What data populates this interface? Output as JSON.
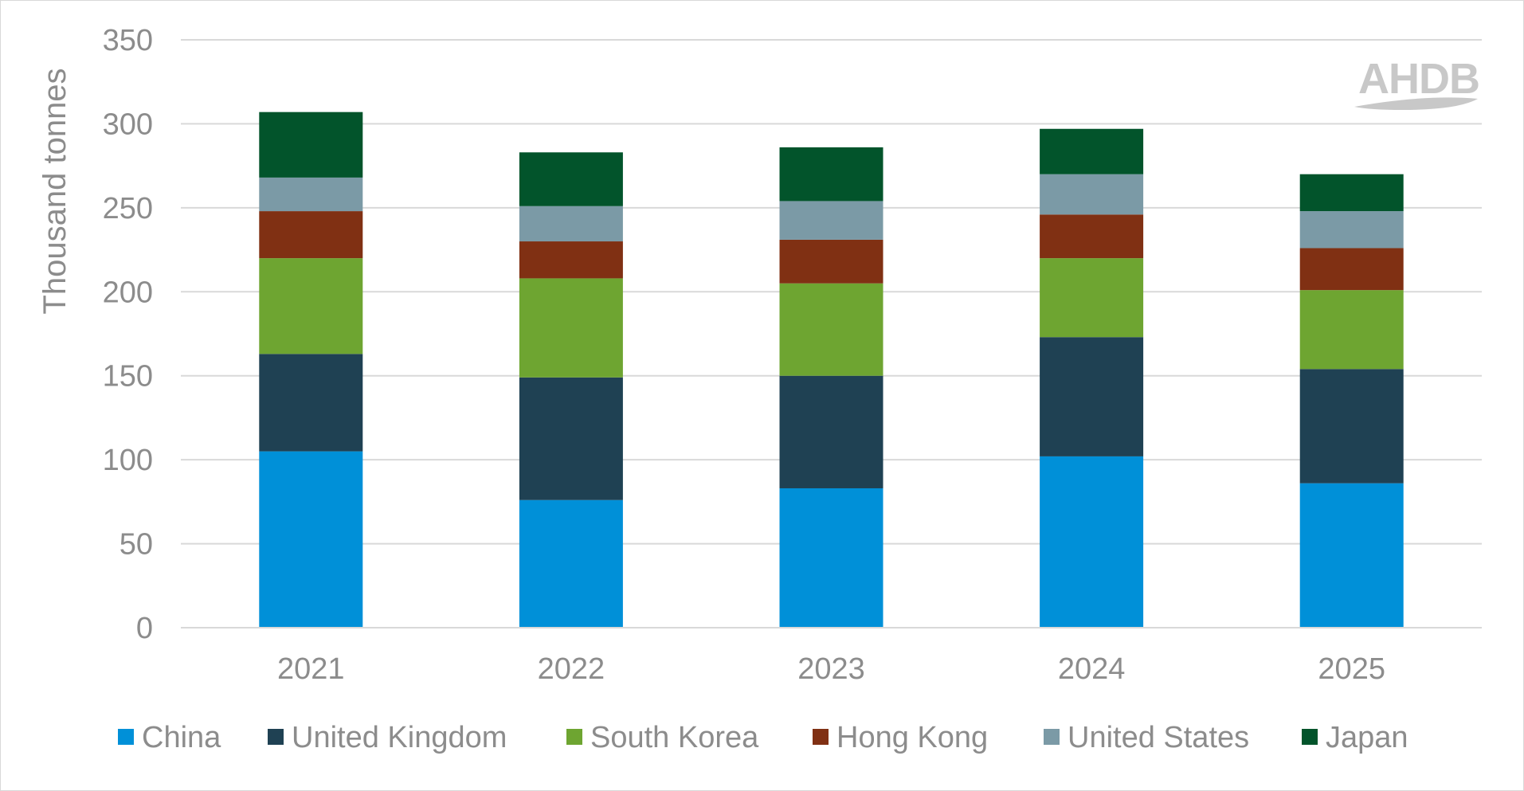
{
  "chart_data": {
    "type": "bar",
    "stacked": true,
    "title": "",
    "xlabel": "",
    "ylabel": "Thousand tonnes",
    "ylim": [
      0,
      350
    ],
    "yticks": [
      0,
      50,
      100,
      150,
      200,
      250,
      300,
      350
    ],
    "grid": true,
    "legend_position": "bottom",
    "categories": [
      "2021",
      "2022",
      "2023",
      "2024",
      "2025"
    ],
    "series": [
      {
        "name": "China",
        "color": "#0090d8",
        "values": [
          105,
          76,
          83,
          102,
          86
        ]
      },
      {
        "name": "United Kingdom",
        "color": "#1f4153",
        "values": [
          58,
          73,
          67,
          71,
          68
        ]
      },
      {
        "name": "South Korea",
        "color": "#6ea531",
        "values": [
          57,
          59,
          55,
          47,
          47
        ]
      },
      {
        "name": "Hong Kong",
        "color": "#803013",
        "values": [
          28,
          22,
          26,
          26,
          25
        ]
      },
      {
        "name": "United States",
        "color": "#7b9aa6",
        "values": [
          20,
          21,
          23,
          24,
          22
        ]
      },
      {
        "name": "Japan",
        "color": "#02542b",
        "values": [
          39,
          32,
          32,
          27,
          22
        ]
      }
    ]
  },
  "logo": {
    "text": "AHDB",
    "icon": "ahdb-logo"
  }
}
